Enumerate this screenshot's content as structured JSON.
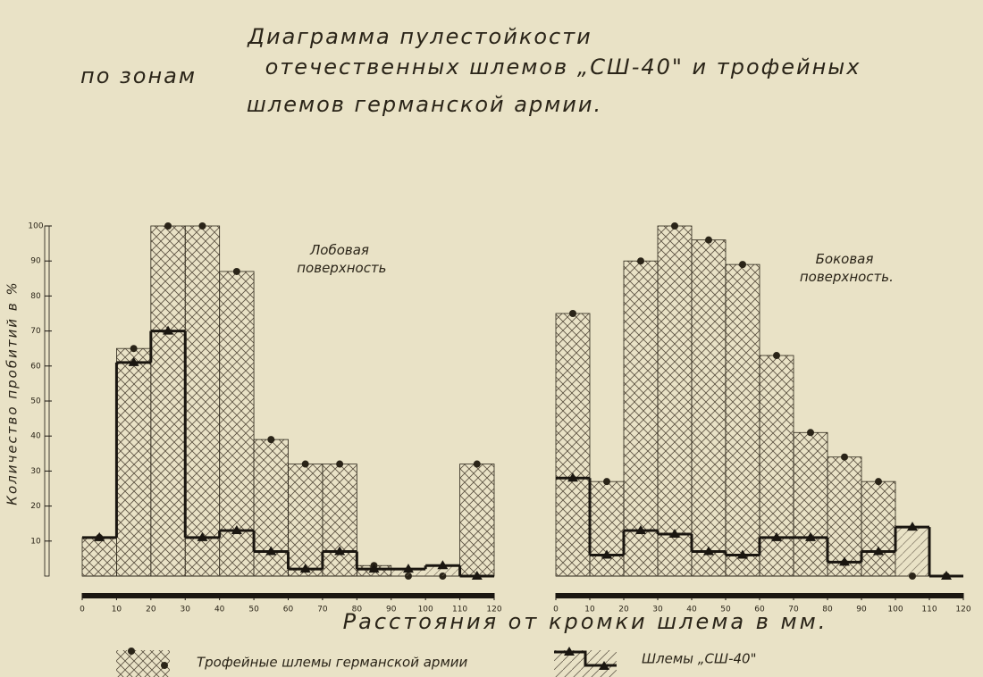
{
  "title": [
    "Диаграмма пулестойкости",
    "по зонам",
    "отечественных шлемов „СШ-40\" и трофейных",
    "шлемов германской армии."
  ],
  "x_label": "Расстояния от кромки шлема в мм.",
  "y_label": "Количество пробитий в %",
  "chart_data": [
    {
      "type": "histogram",
      "title": "Лобовая поверхность",
      "bins": [
        0,
        10,
        20,
        30,
        40,
        50,
        60,
        70,
        80,
        90,
        100,
        110,
        120
      ],
      "series": [
        {
          "name": "Трофейные шлемы германской армии",
          "color": "#2a2418",
          "marker": "circle",
          "values": [
            11,
            65,
            100,
            100,
            87,
            39,
            32,
            32,
            3,
            0,
            0,
            32
          ]
        },
        {
          "name": "Шлемы „СШ-40\"",
          "color": "#1a1610",
          "marker": "triangle",
          "values": [
            11,
            61,
            70,
            11,
            13,
            7,
            2,
            7,
            2,
            2,
            3,
            0
          ]
        }
      ],
      "xlim": [
        0,
        120
      ],
      "xticks": [
        0,
        10,
        20,
        30,
        40,
        50,
        60,
        70,
        80,
        90,
        100,
        110,
        120
      ],
      "ylim": [
        0,
        100
      ],
      "yticks": [
        10,
        20,
        30,
        40,
        50,
        60,
        70,
        80,
        90,
        100
      ]
    },
    {
      "type": "histogram",
      "title": "Боковая поверхность.",
      "bins": [
        0,
        10,
        20,
        30,
        40,
        50,
        60,
        70,
        80,
        90,
        100,
        110,
        120
      ],
      "series": [
        {
          "color": "#2a2418",
          "marker": "circle",
          "values": [
            75,
            27,
            90,
            100,
            96,
            89,
            63,
            41,
            34,
            27,
            0,
            0
          ]
        },
        {
          "color": "#1a1610",
          "marker": "triangle",
          "values": [
            28,
            6,
            13,
            12,
            7,
            6,
            11,
            11,
            4,
            7,
            14,
            0
          ]
        }
      ],
      "xlim": [
        0,
        120
      ],
      "xticks": [
        0,
        10,
        20,
        30,
        40,
        50,
        60,
        70,
        80,
        90,
        100,
        110,
        120
      ],
      "ylim": [
        0,
        100
      ]
    }
  ]
}
